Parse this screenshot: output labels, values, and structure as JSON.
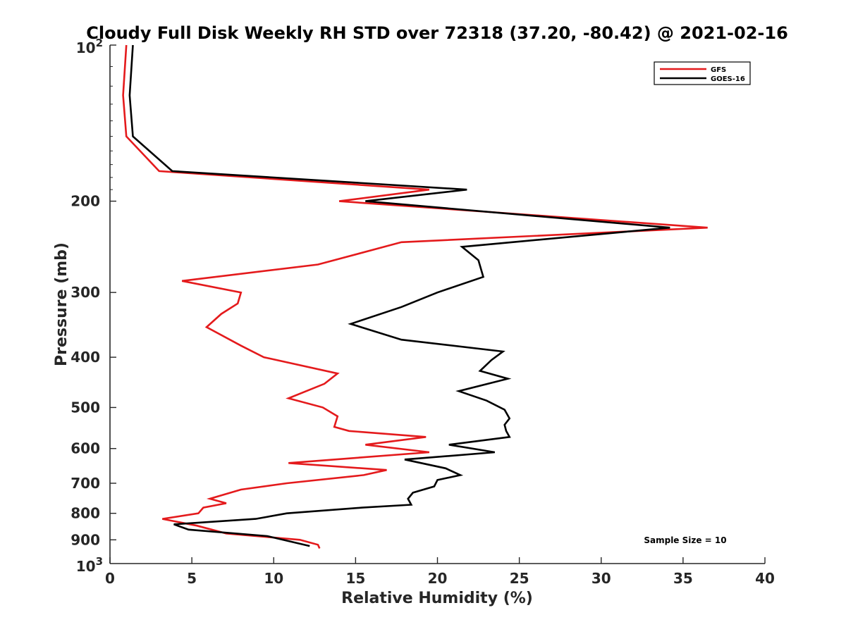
{
  "chart_data": {
    "type": "line",
    "title": "Cloudy Full Disk Weekly RH STD over 72318 (37.20, -80.42) @ 2021-02-16",
    "xlabel": "Relative Humidity (%)",
    "ylabel": "Pressure (mb)",
    "xlim": [
      0,
      40
    ],
    "ylim": [
      100,
      1000
    ],
    "yscale": "log",
    "y_reversed": true,
    "grid": false,
    "legend_position": "top-right",
    "x_ticks": [
      0,
      5,
      10,
      15,
      20,
      25,
      30,
      35,
      40
    ],
    "x_tick_labels": [
      "0",
      "5",
      "10",
      "15",
      "20",
      "25",
      "30",
      "35",
      "40"
    ],
    "y_ticks": [
      200,
      300,
      400,
      500,
      600,
      700,
      800,
      900
    ],
    "y_tick_labels": [
      "200",
      "300",
      "400",
      "500",
      "600",
      "700",
      "800",
      "900"
    ],
    "y_top_label": {
      "base": "10",
      "exp": "2"
    },
    "y_bottom_label": {
      "base": "10",
      "exp": "3"
    },
    "annotation": "Sample Size = 10",
    "series": [
      {
        "name": "GFS",
        "color": "#e41a1c",
        "x": [
          1.0,
          0.8,
          1.0,
          3.0,
          19.5,
          14.0,
          36.5,
          17.8,
          12.7,
          4.4,
          8.0,
          7.8,
          6.8,
          5.9,
          8.0,
          9.4,
          13.9,
          13.1,
          10.9,
          13.0,
          13.9,
          13.7,
          14.6,
          19.3,
          15.6,
          19.5,
          10.9,
          16.9,
          15.5,
          10.8,
          8.0,
          6.1,
          7.1,
          5.7,
          5.4,
          3.2,
          5.3,
          7.1,
          11.6,
          12.7,
          12.8
        ],
        "y": [
          100,
          125,
          150,
          175,
          190,
          200,
          225,
          240,
          265,
          285,
          300,
          315,
          330,
          350,
          380,
          400,
          430,
          450,
          480,
          500,
          520,
          545,
          555,
          570,
          590,
          610,
          640,
          660,
          675,
          700,
          720,
          750,
          765,
          780,
          800,
          820,
          845,
          875,
          900,
          920,
          935
        ]
      },
      {
        "name": "GOES-16",
        "color": "#000000",
        "x": [
          1.4,
          1.2,
          1.4,
          3.8,
          21.8,
          15.6,
          34.2,
          21.5,
          22.5,
          22.8,
          20.0,
          17.8,
          14.7,
          17.8,
          24.0,
          23.3,
          22.6,
          24.3,
          21.3,
          23.0,
          24.1,
          24.4,
          24.1,
          24.2,
          24.4,
          20.7,
          23.5,
          18.0,
          20.5,
          21.4,
          20.0,
          19.8,
          18.5,
          18.2,
          18.4,
          15.4,
          10.8,
          8.9,
          3.9,
          4.8,
          9.6,
          12.2
        ],
        "y": [
          100,
          125,
          150,
          175,
          190,
          200,
          225,
          245,
          260,
          280,
          300,
          320,
          345,
          370,
          390,
          405,
          425,
          440,
          465,
          485,
          505,
          525,
          540,
          555,
          570,
          590,
          610,
          630,
          655,
          675,
          690,
          710,
          730,
          750,
          770,
          780,
          800,
          820,
          840,
          860,
          885,
          925
        ]
      }
    ]
  }
}
